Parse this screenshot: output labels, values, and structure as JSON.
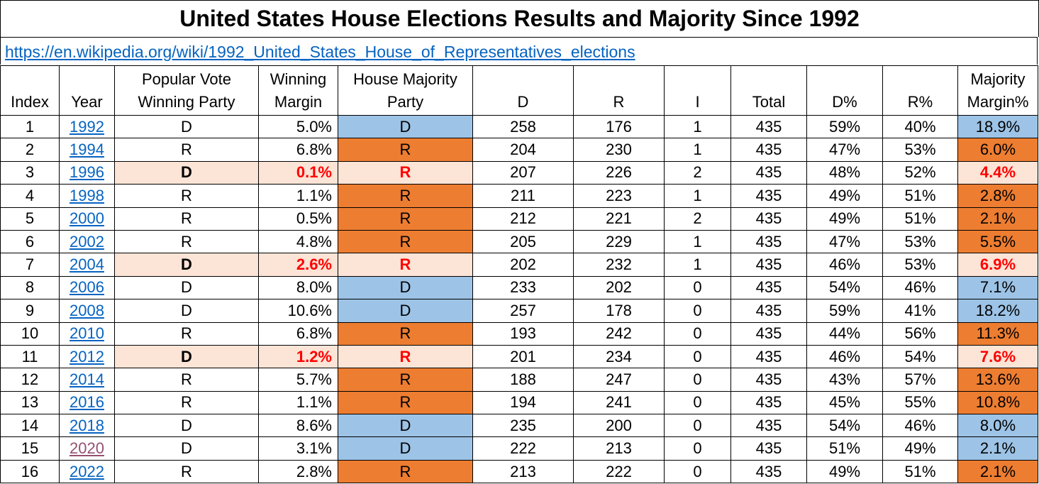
{
  "title": "United States House Elections Results and Majority Since 1992",
  "source_link": "https://en.wikipedia.org/wiki/1992_United_States_House_of_Representatives_elections",
  "columns": {
    "index": "Index",
    "year": "Year",
    "popular_vote_1": "Popular Vote",
    "popular_vote_2": "Winning Party",
    "winning_margin_1": "Winning",
    "winning_margin_2": "Margin",
    "house_majority_1": "House Majority",
    "house_majority_2": "Party",
    "d": "D",
    "r": "R",
    "i": "I",
    "total": "Total",
    "d_pct": "D%",
    "r_pct": "R%",
    "majority_margin_1": "Majority",
    "majority_margin_2": "Margin%"
  },
  "colors": {
    "democrat": "#9dc3e6",
    "republican": "#ed7d31",
    "mismatch": "#fce4d6",
    "mismatch_text": "#ff0000",
    "link": "#0563c1",
    "visited_link": "#954f72"
  },
  "rows": [
    {
      "index": "1",
      "year": "1992",
      "pv": "D",
      "wm": "5.0%",
      "hm": "D",
      "d": "258",
      "r": "176",
      "i": "1",
      "total": "435",
      "dp": "59%",
      "rp": "40%",
      "mm": "18.9%",
      "mismatch": false,
      "visited": false
    },
    {
      "index": "2",
      "year": "1994",
      "pv": "R",
      "wm": "6.8%",
      "hm": "R",
      "d": "204",
      "r": "230",
      "i": "1",
      "total": "435",
      "dp": "47%",
      "rp": "53%",
      "mm": "6.0%",
      "mismatch": false,
      "visited": false
    },
    {
      "index": "3",
      "year": "1996",
      "pv": "D",
      "wm": "0.1%",
      "hm": "R",
      "d": "207",
      "r": "226",
      "i": "2",
      "total": "435",
      "dp": "48%",
      "rp": "52%",
      "mm": "4.4%",
      "mismatch": true,
      "visited": false
    },
    {
      "index": "4",
      "year": "1998",
      "pv": "R",
      "wm": "1.1%",
      "hm": "R",
      "d": "211",
      "r": "223",
      "i": "1",
      "total": "435",
      "dp": "49%",
      "rp": "51%",
      "mm": "2.8%",
      "mismatch": false,
      "visited": false
    },
    {
      "index": "5",
      "year": "2000",
      "pv": "R",
      "wm": "0.5%",
      "hm": "R",
      "d": "212",
      "r": "221",
      "i": "2",
      "total": "435",
      "dp": "49%",
      "rp": "51%",
      "mm": "2.1%",
      "mismatch": false,
      "visited": false
    },
    {
      "index": "6",
      "year": "2002",
      "pv": "R",
      "wm": "4.8%",
      "hm": "R",
      "d": "205",
      "r": "229",
      "i": "1",
      "total": "435",
      "dp": "47%",
      "rp": "53%",
      "mm": "5.5%",
      "mismatch": false,
      "visited": false
    },
    {
      "index": "7",
      "year": "2004",
      "pv": "D",
      "wm": "2.6%",
      "hm": "R",
      "d": "202",
      "r": "232",
      "i": "1",
      "total": "435",
      "dp": "46%",
      "rp": "53%",
      "mm": "6.9%",
      "mismatch": true,
      "visited": false
    },
    {
      "index": "8",
      "year": "2006",
      "pv": "D",
      "wm": "8.0%",
      "hm": "D",
      "d": "233",
      "r": "202",
      "i": "0",
      "total": "435",
      "dp": "54%",
      "rp": "46%",
      "mm": "7.1%",
      "mismatch": false,
      "visited": false
    },
    {
      "index": "9",
      "year": "2008",
      "pv": "D",
      "wm": "10.6%",
      "hm": "D",
      "d": "257",
      "r": "178",
      "i": "0",
      "total": "435",
      "dp": "59%",
      "rp": "41%",
      "mm": "18.2%",
      "mismatch": false,
      "visited": false
    },
    {
      "index": "10",
      "year": "2010",
      "pv": "R",
      "wm": "6.8%",
      "hm": "R",
      "d": "193",
      "r": "242",
      "i": "0",
      "total": "435",
      "dp": "44%",
      "rp": "56%",
      "mm": "11.3%",
      "mismatch": false,
      "visited": false
    },
    {
      "index": "11",
      "year": "2012",
      "pv": "D",
      "wm": "1.2%",
      "hm": "R",
      "d": "201",
      "r": "234",
      "i": "0",
      "total": "435",
      "dp": "46%",
      "rp": "54%",
      "mm": "7.6%",
      "mismatch": true,
      "visited": false
    },
    {
      "index": "12",
      "year": "2014",
      "pv": "R",
      "wm": "5.7%",
      "hm": "R",
      "d": "188",
      "r": "247",
      "i": "0",
      "total": "435",
      "dp": "43%",
      "rp": "57%",
      "mm": "13.6%",
      "mismatch": false,
      "visited": false
    },
    {
      "index": "13",
      "year": "2016",
      "pv": "R",
      "wm": "1.1%",
      "hm": "R",
      "d": "194",
      "r": "241",
      "i": "0",
      "total": "435",
      "dp": "45%",
      "rp": "55%",
      "mm": "10.8%",
      "mismatch": false,
      "visited": false
    },
    {
      "index": "14",
      "year": "2018",
      "pv": "D",
      "wm": "8.6%",
      "hm": "D",
      "d": "235",
      "r": "200",
      "i": "0",
      "total": "435",
      "dp": "54%",
      "rp": "46%",
      "mm": "8.0%",
      "mismatch": false,
      "visited": false
    },
    {
      "index": "15",
      "year": "2020",
      "pv": "D",
      "wm": "3.1%",
      "hm": "D",
      "d": "222",
      "r": "213",
      "i": "0",
      "total": "435",
      "dp": "51%",
      "rp": "49%",
      "mm": "2.1%",
      "mismatch": false,
      "visited": true
    },
    {
      "index": "16",
      "year": "2022",
      "pv": "R",
      "wm": "2.8%",
      "hm": "R",
      "d": "213",
      "r": "222",
      "i": "0",
      "total": "435",
      "dp": "49%",
      "rp": "51%",
      "mm": "2.1%",
      "mismatch": false,
      "visited": false
    }
  ]
}
